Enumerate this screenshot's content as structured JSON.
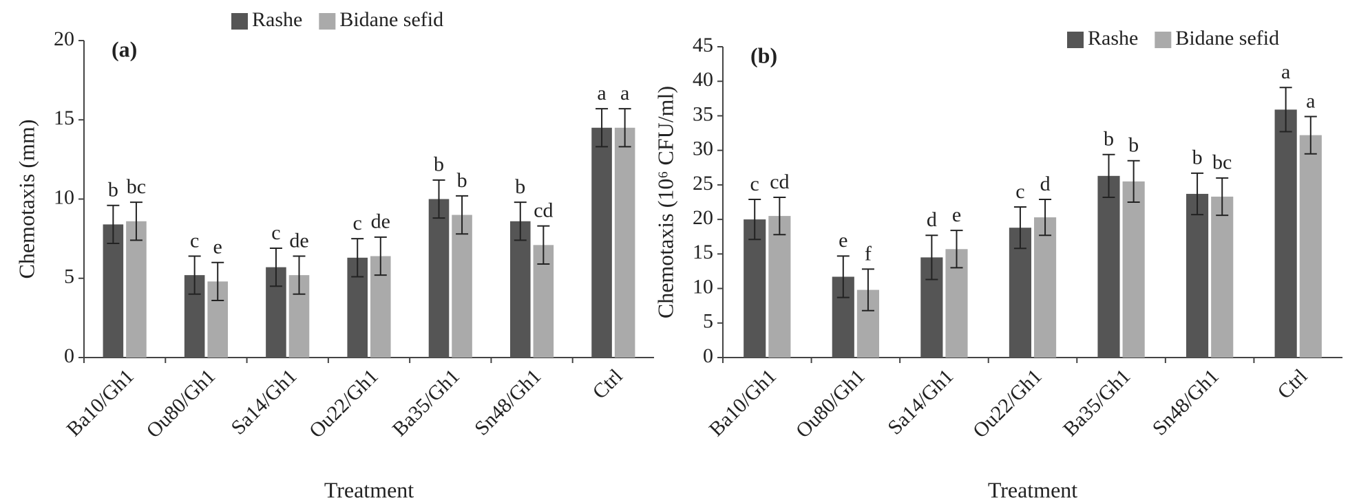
{
  "chart_data": [
    {
      "type": "bar",
      "title": "(a)",
      "y_label": "Chemotaxis (mm)",
      "x_label": "Treatment",
      "categories": [
        "Ba10/Gh1",
        "Ou80/Gh1",
        "Sa14/Gh1",
        "Ou22/Gh1",
        "Ba35/Gh1",
        "Sn48/Gh1",
        "Ctrl"
      ],
      "series": [
        {
          "name": "Rashe",
          "color": "#555555",
          "values": [
            8.4,
            5.2,
            5.7,
            6.3,
            10.0,
            8.6,
            14.5
          ],
          "errors": [
            1.2,
            1.2,
            1.2,
            1.2,
            1.2,
            1.2,
            1.2
          ],
          "letters": [
            "b",
            "c",
            "c",
            "c",
            "b",
            "b",
            "a"
          ]
        },
        {
          "name": "Bidane sefid",
          "color": "#aaaaaa",
          "values": [
            8.6,
            4.8,
            5.2,
            6.4,
            9.0,
            7.1,
            14.5
          ],
          "errors": [
            1.2,
            1.2,
            1.2,
            1.2,
            1.2,
            1.2,
            1.2
          ],
          "letters": [
            "bc",
            "e",
            "de",
            "de",
            "b",
            "cd",
            "a"
          ]
        }
      ],
      "ylim": [
        0,
        20
      ],
      "yticks": [
        0,
        5,
        10,
        15,
        20
      ],
      "grid": false,
      "legend": "top-center"
    },
    {
      "type": "bar",
      "title": "(b)",
      "y_label": "Chemotaxis (10⁶ CFU/ml)",
      "x_label": "Treatment",
      "categories": [
        "Ba10/Gh1",
        "Ou80/Gh1",
        "Sa14/Gh1",
        "Ou22/Gh1",
        "Ba35/Gh1",
        "Sn48/Gh1",
        "Ctrl"
      ],
      "series": [
        {
          "name": "Rashe",
          "color": "#555555",
          "values": [
            20.0,
            11.7,
            14.5,
            18.8,
            26.3,
            23.7,
            35.9
          ],
          "errors": [
            2.9,
            3.0,
            3.2,
            3.0,
            3.1,
            3.0,
            3.2
          ],
          "letters": [
            "c",
            "e",
            "d",
            "c",
            "b",
            "b",
            "a"
          ]
        },
        {
          "name": "Bidane sefid",
          "color": "#aaaaaa",
          "values": [
            20.5,
            9.8,
            15.7,
            20.3,
            25.5,
            23.3,
            32.2
          ],
          "errors": [
            2.7,
            3.0,
            2.7,
            2.6,
            3.0,
            2.7,
            2.7
          ],
          "letters": [
            "cd",
            "f",
            "e",
            "d",
            "b",
            "bc",
            "a"
          ]
        }
      ],
      "ylim": [
        0,
        45
      ],
      "yticks": [
        0,
        5,
        10,
        15,
        20,
        25,
        30,
        35,
        40,
        45
      ],
      "grid": false,
      "legend": "top-right"
    }
  ]
}
